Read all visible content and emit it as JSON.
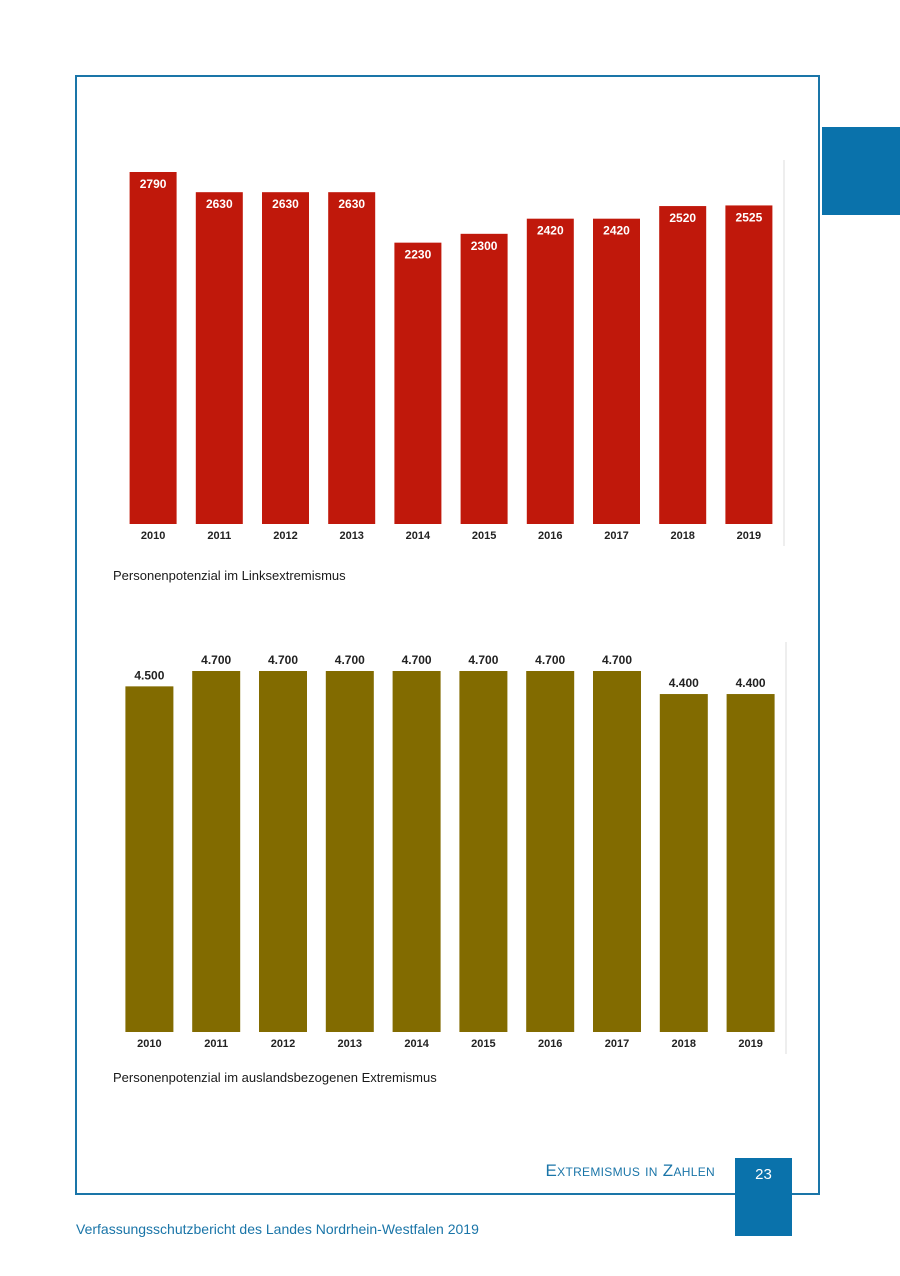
{
  "chart_data": [
    {
      "type": "bar",
      "title": "Personenpotenzial im Linksextremismus",
      "categories": [
        "2010",
        "2011",
        "2012",
        "2013",
        "2014",
        "2015",
        "2016",
        "2017",
        "2018",
        "2019"
      ],
      "values": [
        2790,
        2630,
        2630,
        2630,
        2230,
        2300,
        2420,
        2420,
        2520,
        2525
      ],
      "value_labels": [
        "2790",
        "2630",
        "2630",
        "2630",
        "2230",
        "2300",
        "2420",
        "2420",
        "2520",
        "2525"
      ],
      "color": "#c0180b",
      "label_position": "inside-top",
      "ylim": [
        0,
        2790
      ]
    },
    {
      "type": "bar",
      "title": "Personenpotenzial im auslandsbezogenen Extremismus",
      "categories": [
        "2010",
        "2011",
        "2012",
        "2013",
        "2014",
        "2015",
        "2016",
        "2017",
        "2018",
        "2019"
      ],
      "values": [
        4500,
        4700,
        4700,
        4700,
        4700,
        4700,
        4700,
        4700,
        4400,
        4400
      ],
      "value_labels": [
        "4.500",
        "4.700",
        "4.700",
        "4.700",
        "4.700",
        "4.700",
        "4.700",
        "4.700",
        "4.400",
        "4.400"
      ],
      "color": "#826b00",
      "label_position": "above",
      "ylim": [
        0,
        4700
      ]
    }
  ],
  "section_title": "Extremismus in Zahlen",
  "page_number": "23",
  "footer_text": "Verfassungsschutzbericht des Landes Nordrhein-Westfalen 2019",
  "colors": {
    "accent": "#0a72ab",
    "frame": "#1a75a8"
  }
}
